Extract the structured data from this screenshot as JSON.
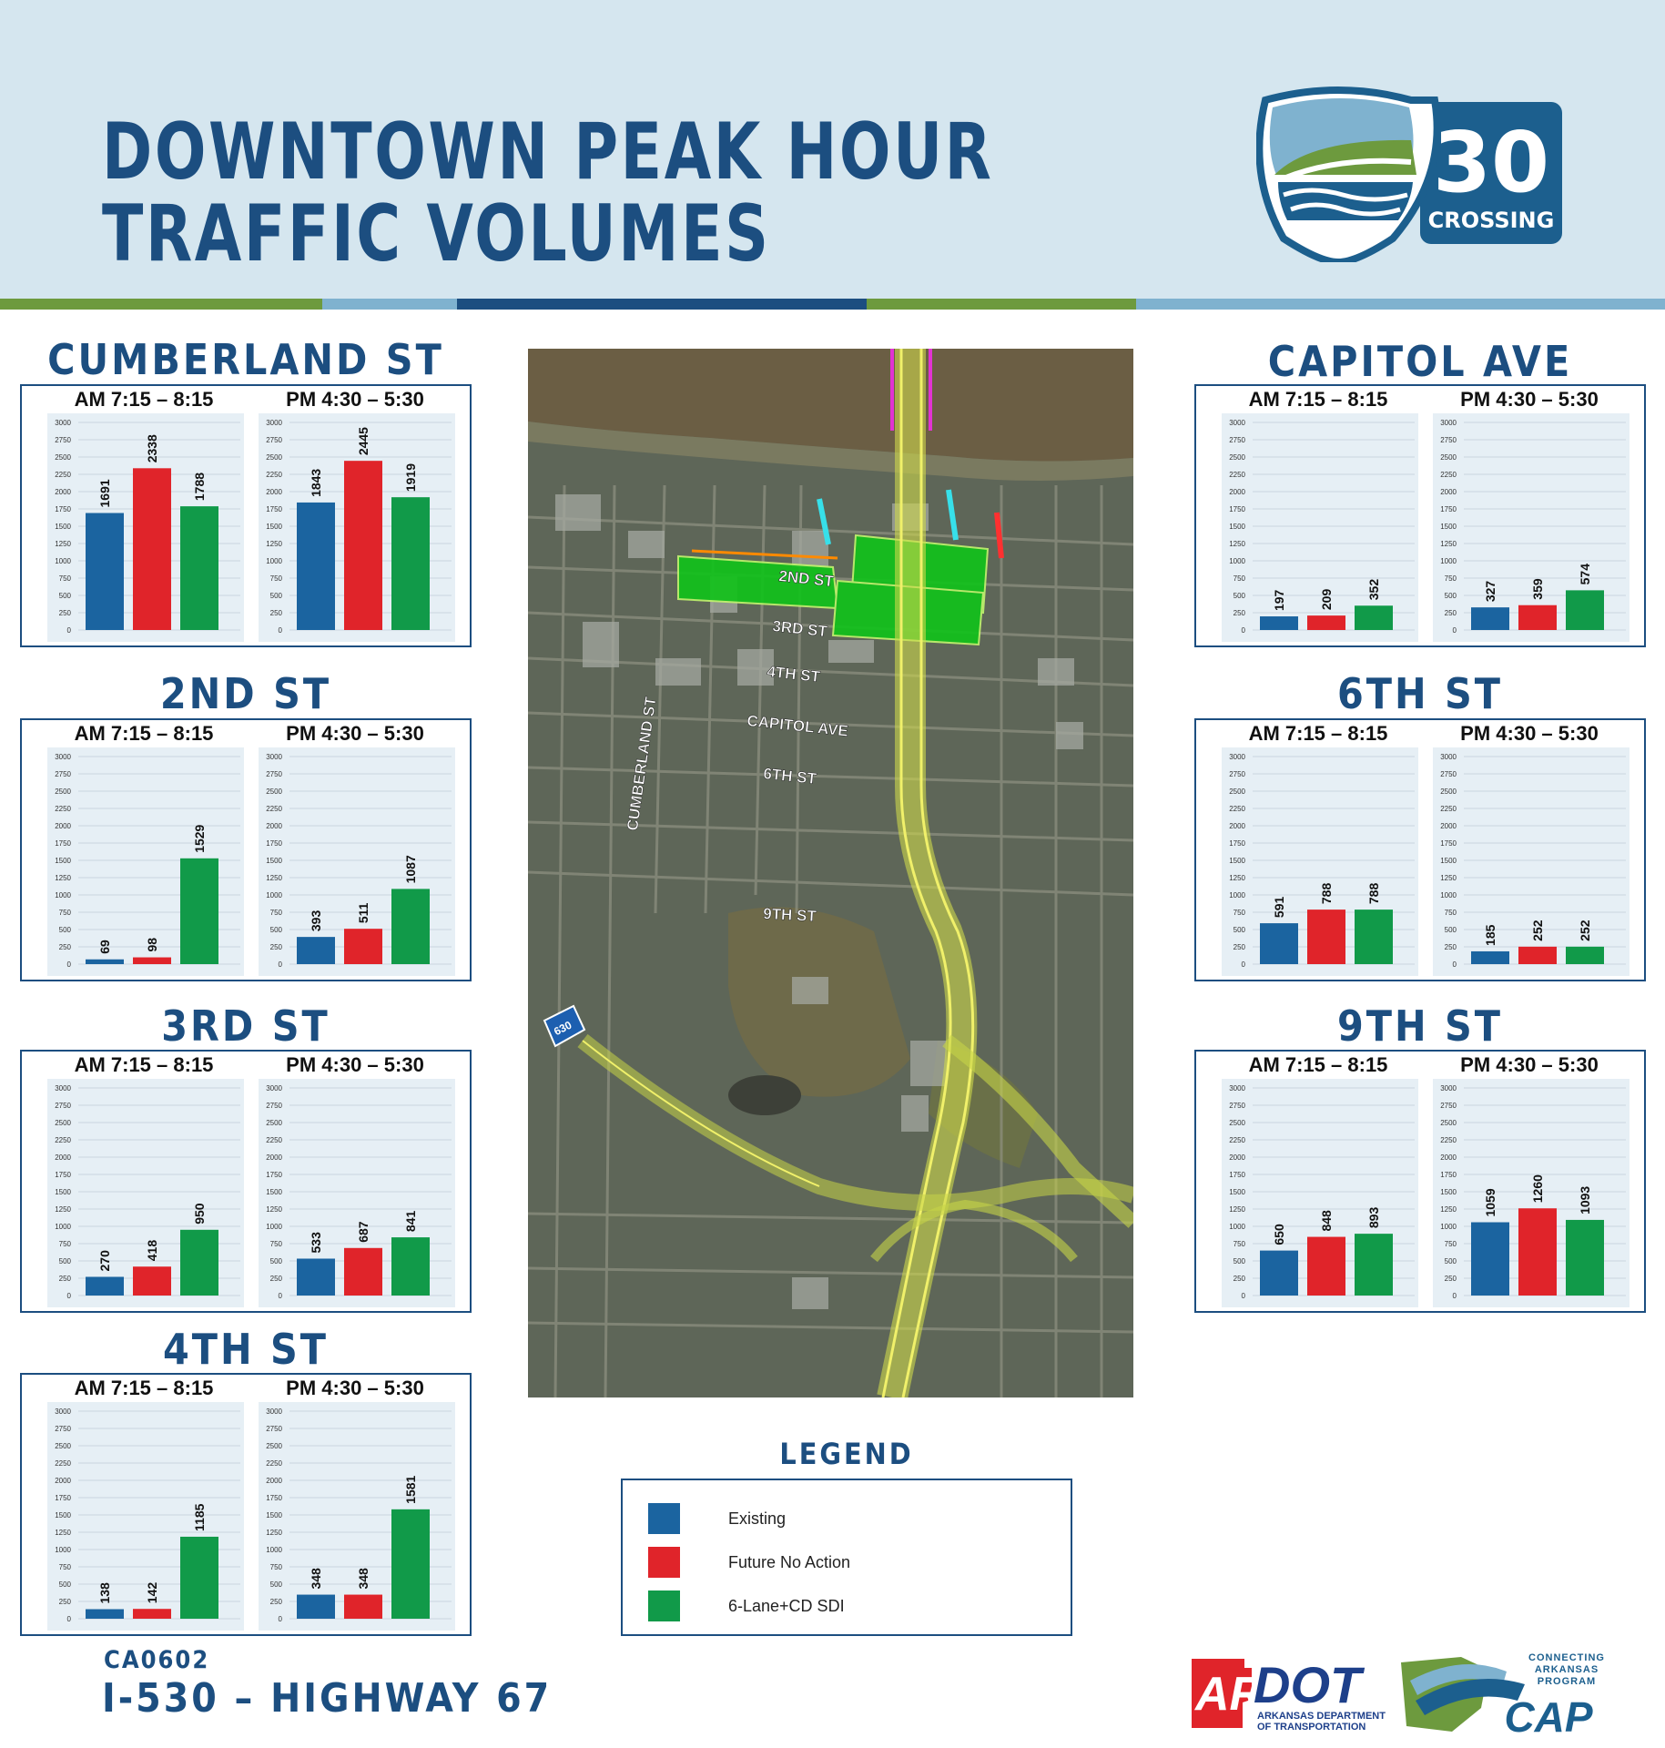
{
  "header": {
    "title_line1": "DOWNTOWN PEAK HOUR",
    "title_line2": "TRAFFIC VOLUMES",
    "logo_number": "30",
    "logo_text": "CROSSING"
  },
  "colors": {
    "existing": "#1b64a0",
    "future_no_action": "#e0242a",
    "six_lane_cd_sdi": "#119a49",
    "brand_blue": "#1c4e80",
    "brand_green": "#6d9a3e",
    "brand_light_blue": "#7fb2cf"
  },
  "panel_labels": {
    "am": "AM 7:15 – 8:15",
    "pm": "PM 4:30 – 5:30"
  },
  "chart_data": [
    {
      "type": "bar",
      "title": "CUMBERLAND ST",
      "categories": [
        "AM 7:15 – 8:15",
        "PM 4:30 – 5:30"
      ],
      "ylim": [
        0,
        3000
      ],
      "yticks": [
        0,
        250,
        500,
        750,
        1000,
        1250,
        1500,
        1750,
        2000,
        2250,
        2500,
        2750,
        3000
      ],
      "series": [
        {
          "name": "Existing",
          "values": [
            1691,
            1843
          ]
        },
        {
          "name": "Future No Action",
          "values": [
            2338,
            2445
          ]
        },
        {
          "name": "6-Lane+CD SDI",
          "values": [
            1788,
            1919
          ]
        }
      ]
    },
    {
      "type": "bar",
      "title": "2ND ST",
      "categories": [
        "AM 7:15 – 8:15",
        "PM 4:30 – 5:30"
      ],
      "ylim": [
        0,
        3000
      ],
      "yticks": [
        0,
        250,
        500,
        750,
        1000,
        1250,
        1500,
        1750,
        2000,
        2250,
        2500,
        2750,
        3000
      ],
      "series": [
        {
          "name": "Existing",
          "values": [
            69,
            393
          ]
        },
        {
          "name": "Future No Action",
          "values": [
            98,
            511
          ]
        },
        {
          "name": "6-Lane+CD SDI",
          "values": [
            1529,
            1087
          ]
        }
      ]
    },
    {
      "type": "bar",
      "title": "3RD ST",
      "categories": [
        "AM 7:15 – 8:15",
        "PM 4:30 – 5:30"
      ],
      "ylim": [
        0,
        3000
      ],
      "yticks": [
        0,
        250,
        500,
        750,
        1000,
        1250,
        1500,
        1750,
        2000,
        2250,
        2500,
        2750,
        3000
      ],
      "series": [
        {
          "name": "Existing",
          "values": [
            270,
            533
          ]
        },
        {
          "name": "Future No Action",
          "values": [
            418,
            687
          ]
        },
        {
          "name": "6-Lane+CD SDI",
          "values": [
            950,
            841
          ]
        }
      ]
    },
    {
      "type": "bar",
      "title": "4TH ST",
      "categories": [
        "AM 7:15 – 8:15",
        "PM 4:30 – 5:30"
      ],
      "ylim": [
        0,
        3000
      ],
      "yticks": [
        0,
        250,
        500,
        750,
        1000,
        1250,
        1500,
        1750,
        2000,
        2250,
        2500,
        2750,
        3000
      ],
      "series": [
        {
          "name": "Existing",
          "values": [
            138,
            348
          ]
        },
        {
          "name": "Future No Action",
          "values": [
            142,
            348
          ]
        },
        {
          "name": "6-Lane+CD SDI",
          "values": [
            1185,
            1581
          ]
        }
      ]
    },
    {
      "type": "bar",
      "title": "CAPITOL AVE",
      "categories": [
        "AM 7:15 – 8:15",
        "PM 4:30 – 5:30"
      ],
      "ylim": [
        0,
        3000
      ],
      "yticks": [
        0,
        250,
        500,
        750,
        1000,
        1250,
        1500,
        1750,
        2000,
        2250,
        2500,
        2750,
        3000
      ],
      "series": [
        {
          "name": "Existing",
          "values": [
            197,
            327
          ]
        },
        {
          "name": "Future No Action",
          "values": [
            209,
            359
          ]
        },
        {
          "name": "6-Lane+CD SDI",
          "values": [
            352,
            574
          ]
        }
      ]
    },
    {
      "type": "bar",
      "title": "6TH ST",
      "categories": [
        "AM 7:15 – 8:15",
        "PM 4:30 – 5:30"
      ],
      "ylim": [
        0,
        3000
      ],
      "yticks": [
        0,
        250,
        500,
        750,
        1000,
        1250,
        1500,
        1750,
        2000,
        2250,
        2500,
        2750,
        3000
      ],
      "series": [
        {
          "name": "Existing",
          "values": [
            591,
            185
          ]
        },
        {
          "name": "Future No Action",
          "values": [
            788,
            252
          ]
        },
        {
          "name": "6-Lane+CD SDI",
          "values": [
            788,
            252
          ]
        }
      ]
    },
    {
      "type": "bar",
      "title": "9TH ST",
      "categories": [
        "AM 7:15 – 8:15",
        "PM 4:30 – 5:30"
      ],
      "ylim": [
        0,
        3000
      ],
      "yticks": [
        0,
        250,
        500,
        750,
        1000,
        1250,
        1500,
        1750,
        2000,
        2250,
        2500,
        2750,
        3000
      ],
      "series": [
        {
          "name": "Existing",
          "values": [
            650,
            1059
          ]
        },
        {
          "name": "Future No Action",
          "values": [
            848,
            1260
          ]
        },
        {
          "name": "6-Lane+CD SDI",
          "values": [
            893,
            1093
          ]
        }
      ]
    }
  ],
  "map": {
    "street_labels": [
      "2ND ST",
      "3RD ST",
      "4TH ST",
      "CAPITOL AVE",
      "6TH ST",
      "9TH ST",
      "CUMBERLAND ST"
    ],
    "shield": "630"
  },
  "legend": {
    "title": "LEGEND",
    "items": [
      "Existing",
      "Future No Action",
      "6-Lane+CD SDI"
    ]
  },
  "footer": {
    "project_code": "CA0602",
    "project_name": "I-530 – HIGHWAY 67",
    "ardot_text": "AR",
    "ardot_text2": "DOT",
    "ardot_sub1": "ARKANSAS DEPARTMENT",
    "ardot_sub2": "OF TRANSPORTATION",
    "cap_top1": "CONNECTING",
    "cap_top2": "ARKANSAS",
    "cap_top3": "PROGRAM",
    "cap_text": "CAP"
  }
}
